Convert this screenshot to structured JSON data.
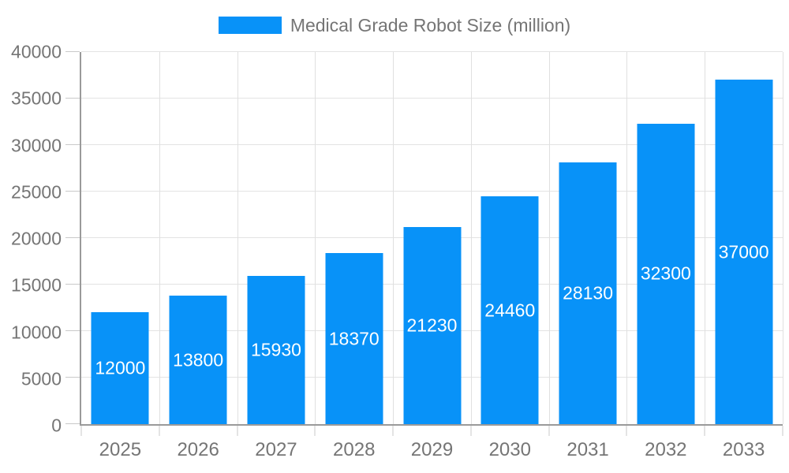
{
  "legend": {
    "label": "Medical Grade Robot Size (million)"
  },
  "colors": {
    "bar": "#0892F8",
    "bar_label": "#FFFFFF",
    "axis_line": "#9A9A9A",
    "grid_line": "#E3E3E3",
    "tick_mark": "#C9C9C9",
    "label_text": "#757575",
    "background": "#FFFFFF"
  },
  "chart_data": {
    "type": "bar",
    "title": "Medical Grade Robot Size (million)",
    "categories": [
      "2025",
      "2026",
      "2027",
      "2028",
      "2029",
      "2030",
      "2031",
      "2032",
      "2033"
    ],
    "values": [
      12000,
      13800,
      15930,
      18370,
      21230,
      24460,
      28130,
      32300,
      37000
    ],
    "xlabel": "",
    "ylabel": "",
    "ylim": [
      0,
      40000
    ],
    "yticks": [
      0,
      5000,
      10000,
      15000,
      20000,
      25000,
      30000,
      35000,
      40000
    ],
    "grid": true,
    "legend_position": "top-center",
    "value_labels": "inside-center"
  }
}
